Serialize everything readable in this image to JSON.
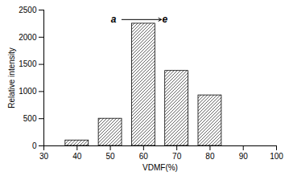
{
  "chart_data": {
    "type": "bar",
    "x": [
      40,
      50,
      60,
      70,
      80
    ],
    "values": [
      100,
      500,
      2250,
      1380,
      930
    ],
    "color": "white",
    "xlim": [
      30,
      100
    ],
    "xticks": [
      30,
      40,
      50,
      60,
      70,
      80,
      90,
      100
    ],
    "ylim": [
      0,
      2500
    ],
    "yticks": [
      0,
      500,
      1000,
      1500,
      2000,
      2500
    ],
    "xlabel": "VDMF(%)",
    "ylabel": "Relative intensity",
    "annotations": [
      "a",
      "e"
    ],
    "grid": false
  }
}
